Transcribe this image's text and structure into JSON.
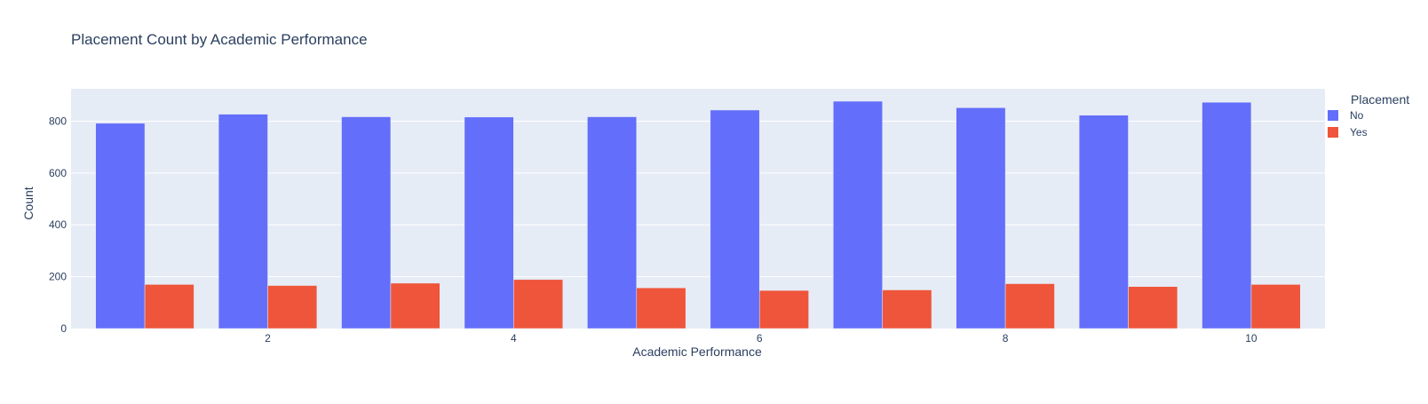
{
  "chart_data": {
    "type": "bar",
    "title": "Placement Count by Academic Performance",
    "xlabel": "Academic Performance",
    "ylabel": "Count",
    "categories": [
      1,
      2,
      3,
      4,
      5,
      6,
      7,
      8,
      9,
      10
    ],
    "x_ticks": [
      2,
      4,
      6,
      8,
      10
    ],
    "y_ticks": [
      0,
      200,
      400,
      600,
      800
    ],
    "xlim": [
      0.4,
      10.6
    ],
    "ylim": [
      0,
      925
    ],
    "barmode": "group",
    "grid": true,
    "legend": {
      "title": "Placement",
      "placement": "top-right"
    },
    "series": [
      {
        "name": "No",
        "color": "#636efa",
        "values": [
          792,
          827,
          817,
          816,
          817,
          843,
          877,
          852,
          823,
          873
        ]
      },
      {
        "name": "Yes",
        "color": "#ef553b",
        "values": [
          170,
          166,
          175,
          189,
          157,
          147,
          149,
          173,
          162,
          170
        ]
      }
    ],
    "plot_background": "#e5ecf6",
    "grid_color": "#ffffff"
  }
}
